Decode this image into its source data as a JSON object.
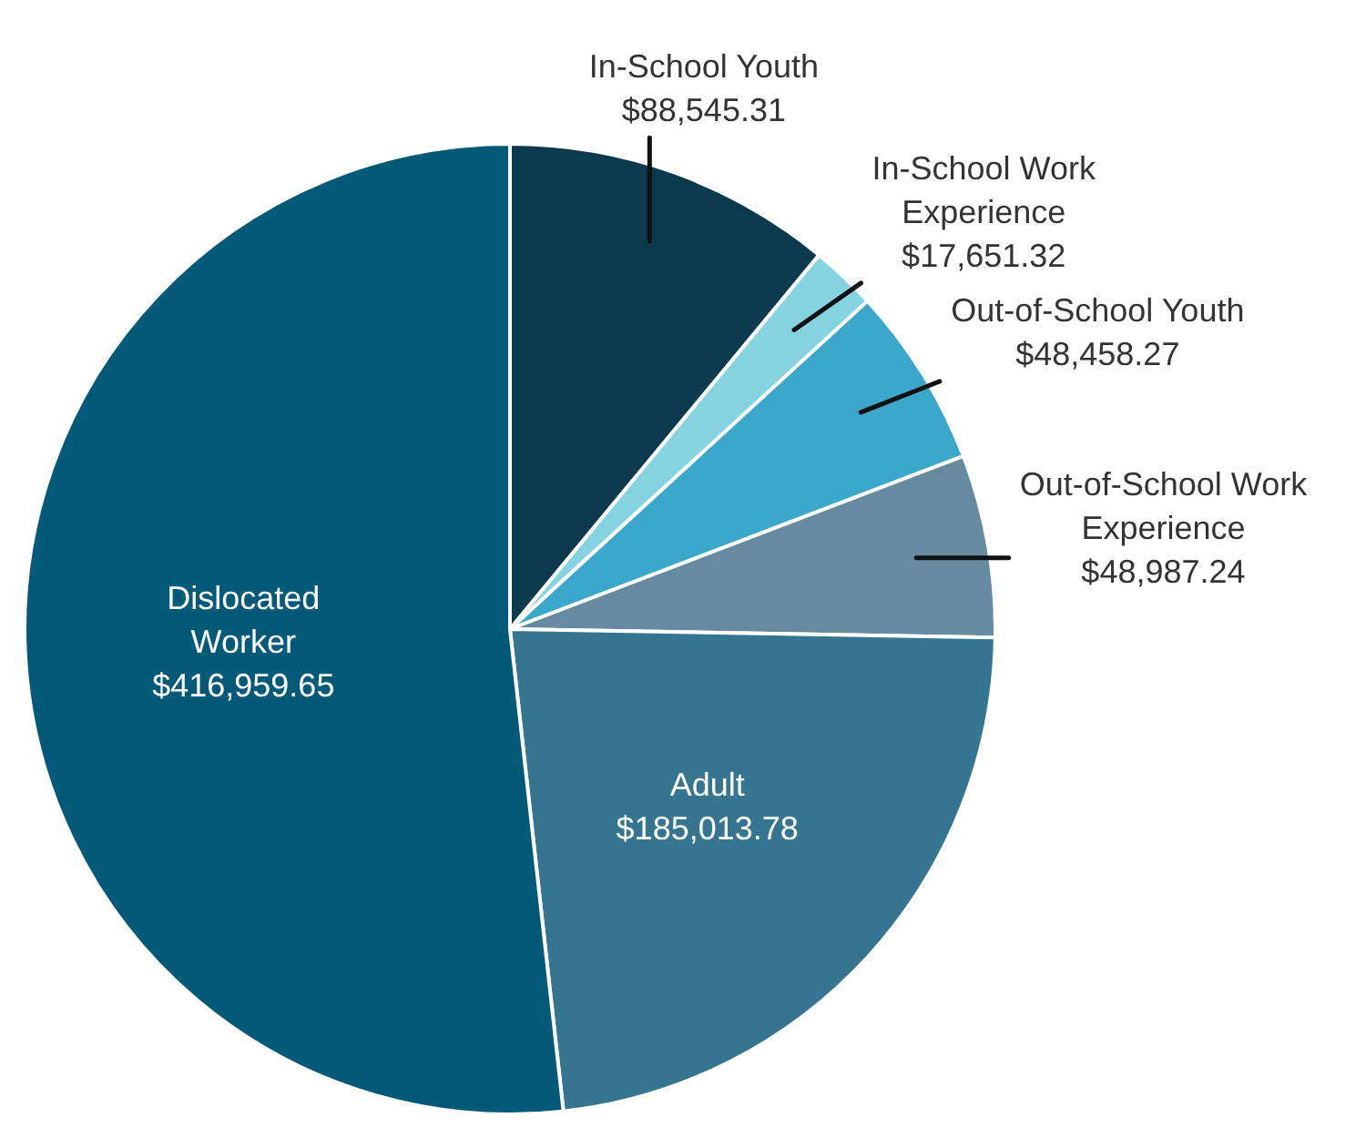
{
  "chart_data": {
    "type": "pie",
    "categories": [
      "In-School Youth",
      "In-School Work Experience",
      "Out-of-School Youth",
      "Out-of-School Work Experience",
      "Adult",
      "Dislocated Worker"
    ],
    "values": [
      88545.31,
      17651.32,
      48458.27,
      48987.24,
      185013.78,
      416959.65
    ],
    "colors": [
      "#0b3a4f",
      "#85d3e0",
      "#3aa7cb",
      "#668ba0",
      "#357590",
      "#035a78"
    ],
    "value_labels": [
      "$88,545.31",
      "$17,651.32",
      "$48,458.27",
      "$48,987.24",
      "$185,013.78",
      "$416,959.65"
    ]
  }
}
